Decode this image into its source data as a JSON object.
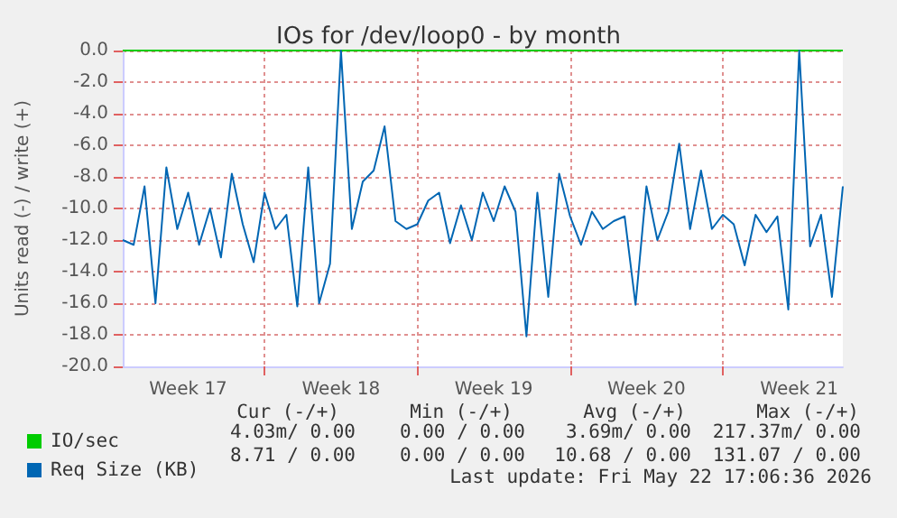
{
  "chart_data": {
    "type": "line",
    "title": "IOs for /dev/loop0 - by month",
    "ylabel": "Units read (-) / write (+)",
    "categories": [
      null,
      null,
      null,
      null,
      null,
      null,
      "Week 17",
      null,
      null,
      null,
      null,
      null,
      null,
      null,
      null,
      null,
      null,
      null,
      null,
      null,
      "Week 18",
      null,
      null,
      null,
      null,
      null,
      null,
      null,
      null,
      null,
      null,
      null,
      null,
      null,
      "Week 19",
      null,
      null,
      null,
      null,
      null,
      null,
      null,
      null,
      null,
      null,
      null,
      null,
      null,
      "Week 20",
      null,
      null,
      null,
      null,
      null,
      null,
      null,
      null,
      null,
      null,
      null,
      null,
      null,
      "Week 21",
      null,
      null,
      null,
      null
    ],
    "ylim": [
      -20,
      0
    ],
    "yticks": [
      {
        "value": -20,
        "label": "-20.0"
      },
      {
        "value": -18,
        "label": "-18.0"
      },
      {
        "value": -16,
        "label": "-16.0"
      },
      {
        "value": -14,
        "label": "-14.0"
      },
      {
        "value": -12,
        "label": "-12.0"
      },
      {
        "value": -10,
        "label": "-10.0"
      },
      {
        "value": -8,
        "label": "-8.0"
      },
      {
        "value": -6,
        "label": "-6.0"
      },
      {
        "value": -4,
        "label": "-4.0"
      },
      {
        "value": -2,
        "label": "-2.0"
      },
      {
        "value": 0,
        "label": "0.0"
      }
    ],
    "grid": true,
    "legend": "bottom left",
    "marker": "none",
    "line_style": "solid",
    "series": [
      {
        "name": "IO/sec",
        "color": "#00cc00",
        "values": [
          0,
          0,
          0,
          0,
          0,
          0,
          0,
          0,
          0,
          0,
          0,
          0,
          0,
          0,
          0,
          0,
          0,
          0,
          0,
          0,
          0,
          0,
          0,
          0,
          0,
          0,
          0,
          0,
          0,
          0,
          0,
          0,
          0,
          0,
          0,
          0,
          0,
          0,
          0,
          0,
          0,
          0,
          0,
          0,
          0,
          0,
          0,
          0,
          0,
          0,
          0,
          0,
          0,
          0,
          0,
          0,
          0,
          0,
          0,
          0,
          0,
          0,
          0,
          0,
          0,
          0,
          0
        ]
      },
      {
        "name": "Req Size (KB)",
        "color": "#0066b3",
        "values": [
          -12,
          -12.3,
          -8.6,
          -16,
          -7.4,
          -11.3,
          -9,
          -12.3,
          -10,
          -13.1,
          -7.8,
          -11,
          -13.4,
          -9,
          -11.3,
          -10.4,
          -16.2,
          -7.4,
          -16,
          -13.5,
          0,
          -11.3,
          -8.3,
          -7.6,
          -4.8,
          -10.8,
          -11.3,
          -11,
          -9.5,
          -9,
          -12.2,
          -9.8,
          -12,
          -9,
          -10.8,
          -8.6,
          -10.2,
          -18.1,
          -9,
          -15.6,
          -7.8,
          -10.5,
          -12.3,
          -10.2,
          -11.3,
          -10.8,
          -10.5,
          -16.1,
          -8.6,
          -12,
          -10.2,
          -5.9,
          -11.3,
          -7.6,
          -11.3,
          -10.4,
          -11,
          -13.6,
          -10.4,
          -11.5,
          -10.5,
          -16.4,
          0,
          -12.4,
          -10.4,
          -15.6,
          -8.6
        ]
      }
    ],
    "annotations": [
      "Cur (-/+)",
      "Min (-/+)",
      "Avg (-/+)",
      "Max (-/+)",
      "4.03m/ 0.00",
      "0.00 / 0.00",
      "3.69m/ 0.00",
      "217.37m/ 0.00",
      "8.71 / 0.00",
      "0.00 / 0.00",
      "10.68 / 0.00",
      "131.07 / 0.00",
      "Last update: Fri May 22 17:06:36 2026"
    ]
  }
}
